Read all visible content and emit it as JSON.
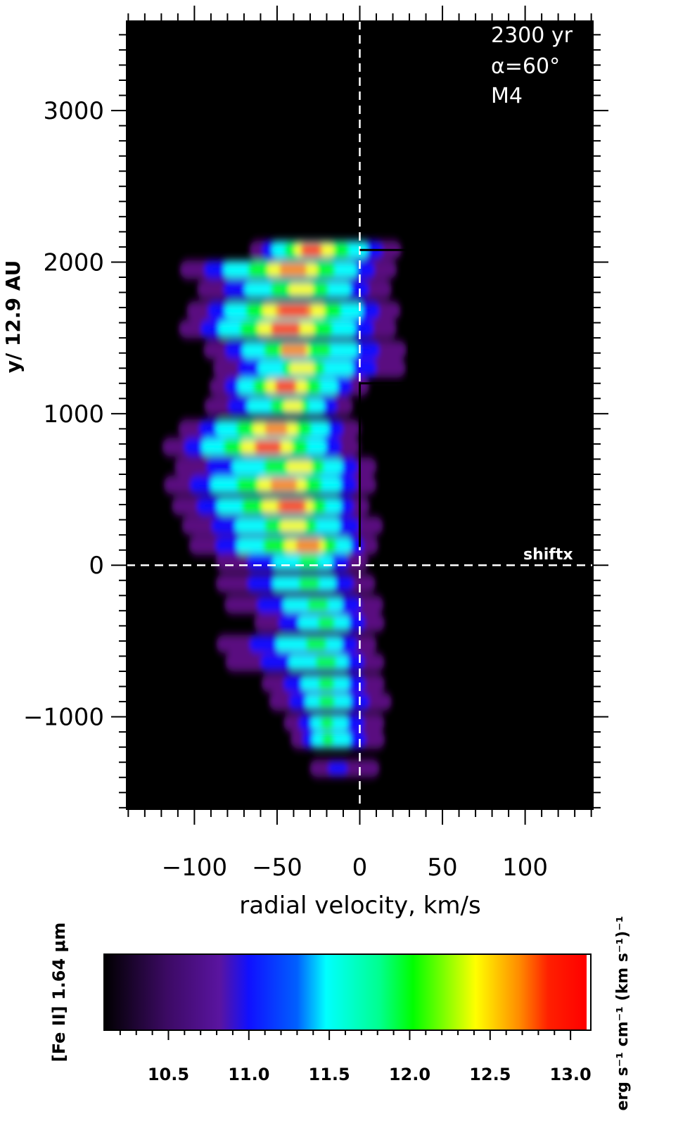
{
  "chart_data": [
    {
      "type": "heatmap",
      "title": "",
      "xlabel": "radial velocity, km/s",
      "ylabel": "y/ 12.9 AU",
      "xlim": [
        -141,
        141
      ],
      "ylim": [
        -1610,
        3590
      ],
      "x_ticks": [
        -100,
        -50,
        0,
        50,
        100
      ],
      "x_tick_labels": [
        "−100",
        "−50",
        "0",
        "50",
        "100"
      ],
      "y_ticks": [
        -1000,
        0,
        1000,
        2000,
        3000
      ],
      "y_tick_labels": [
        "−1000",
        "0",
        "1000",
        "2000",
        "3000"
      ],
      "annotations": [
        "2300 yr",
        "α=60°",
        "M4",
        "shiftx"
      ],
      "reference_lines": {
        "x": 0,
        "y": 0,
        "style": "dashed",
        "color": "#ffffff"
      },
      "profile_line": [
        [
          0,
          120
        ],
        [
          0,
          1200
        ],
        [
          30,
          1200
        ],
        [
          30,
          2080
        ],
        [
          0,
          2080
        ]
      ],
      "emission_rows": [
        {
          "y": 2080,
          "xmin": -70,
          "xmax": 30,
          "peak": 12.95,
          "peak_x": -30
        },
        {
          "y": 1950,
          "xmin": -115,
          "xmax": 28,
          "peak": 12.85,
          "peak_x": -40
        },
        {
          "y": 1820,
          "xmin": -105,
          "xmax": 25,
          "peak": 12.5,
          "peak_x": -35
        },
        {
          "y": 1680,
          "xmin": -110,
          "xmax": 30,
          "peak": 13.05,
          "peak_x": -40
        },
        {
          "y": 1560,
          "xmin": -115,
          "xmax": 28,
          "peak": 12.95,
          "peak_x": -45
        },
        {
          "y": 1420,
          "xmin": -100,
          "xmax": 35,
          "peak": 12.6,
          "peak_x": -40
        },
        {
          "y": 1300,
          "xmin": -95,
          "xmax": 35,
          "peak": 12.3,
          "peak_x": -35
        },
        {
          "y": 1180,
          "xmin": -95,
          "xmax": 10,
          "peak": 12.95,
          "peak_x": -45
        },
        {
          "y": 1050,
          "xmin": -100,
          "xmax": 0,
          "peak": 12.4,
          "peak_x": -40
        },
        {
          "y": 900,
          "xmin": -115,
          "xmax": 5,
          "peak": 12.9,
          "peak_x": -50
        },
        {
          "y": 780,
          "xmin": -125,
          "xmax": 5,
          "peak": 12.95,
          "peak_x": -55
        },
        {
          "y": 650,
          "xmin": -120,
          "xmax": 15,
          "peak": 12.5,
          "peak_x": -35
        },
        {
          "y": 530,
          "xmin": -125,
          "xmax": 15,
          "peak": 12.85,
          "peak_x": -45
        },
        {
          "y": 390,
          "xmin": -120,
          "xmax": 10,
          "peak": 12.95,
          "peak_x": -40
        },
        {
          "y": 260,
          "xmin": -115,
          "xmax": 20,
          "peak": 12.4,
          "peak_x": -40
        },
        {
          "y": 130,
          "xmin": -110,
          "xmax": 15,
          "peak": 12.8,
          "peak_x": -30
        },
        {
          "y": 20,
          "xmin": -95,
          "xmax": 10,
          "peak": 12.0,
          "peak_x": -30
        },
        {
          "y": -120,
          "xmin": -95,
          "xmax": 15,
          "peak": 12.0,
          "peak_x": -30
        },
        {
          "y": -260,
          "xmin": -90,
          "xmax": 20,
          "peak": 11.95,
          "peak_x": -25
        },
        {
          "y": -380,
          "xmin": -70,
          "xmax": 20,
          "peak": 12.0,
          "peak_x": -20
        },
        {
          "y": -520,
          "xmin": -95,
          "xmax": 15,
          "peak": 12.05,
          "peak_x": -25
        },
        {
          "y": -640,
          "xmin": -90,
          "xmax": 20,
          "peak": 11.95,
          "peak_x": -20
        },
        {
          "y": -780,
          "xmin": -65,
          "xmax": 20,
          "peak": 12.0,
          "peak_x": -20
        },
        {
          "y": -900,
          "xmin": -60,
          "xmax": 25,
          "peak": 11.95,
          "peak_x": -20
        },
        {
          "y": -1040,
          "xmin": -50,
          "xmax": 20,
          "peak": 11.95,
          "peak_x": -20
        },
        {
          "y": -1150,
          "xmin": -45,
          "xmax": 20,
          "peak": 12.05,
          "peak_x": -20
        },
        {
          "y": -1340,
          "xmin": -35,
          "xmax": 20,
          "peak": 11.2,
          "peak_x": -15
        }
      ]
    },
    {
      "type": "heatmap",
      "title": "",
      "xlabel": "erg s⁻¹ cm⁻¹ (km s⁻¹)⁻¹",
      "ylabel": "[Fe II] 1.64 μm",
      "xlim": [
        10.1,
        13.1
      ],
      "x_ticks": [
        10.5,
        11.0,
        11.5,
        12.0,
        12.5,
        13.0
      ],
      "x_tick_labels": [
        "10.5",
        "11.0",
        "11.5",
        "12.0",
        "12.5",
        "13.0"
      ],
      "colormap": [
        "#000000",
        "#5a0a80",
        "#1010ff",
        "#00ffff",
        "#00ff00",
        "#ffff00",
        "#ff8000",
        "#ff0000"
      ]
    }
  ]
}
